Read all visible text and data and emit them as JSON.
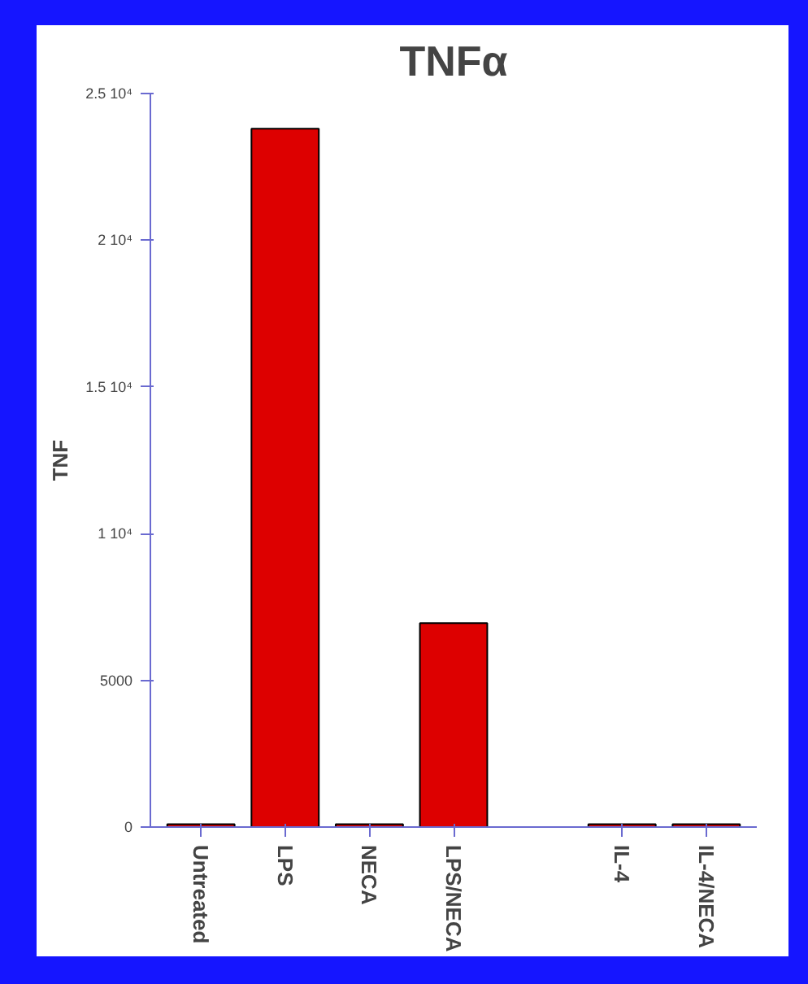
{
  "chart_data": {
    "type": "bar",
    "title": "TNFα",
    "ylabel": "TNF",
    "categories": [
      "Untreated",
      "LPS",
      "NECA",
      "LPS/NECA",
      null,
      "IL-4",
      "IL-4/NECA"
    ],
    "values": [
      100,
      23800,
      100,
      6950,
      null,
      100,
      100
    ],
    "color": "#dd0000",
    "ylim": [
      0,
      25000
    ],
    "yticks": [
      0,
      5000,
      {
        "value": 10000,
        "label": "1 10⁴"
      },
      {
        "value": 15000,
        "label": "1.5 10⁴"
      },
      {
        "value": 20000,
        "label": "2 10⁴"
      },
      {
        "value": 25000,
        "label": "2.5 10⁴"
      }
    ],
    "grid": false
  }
}
